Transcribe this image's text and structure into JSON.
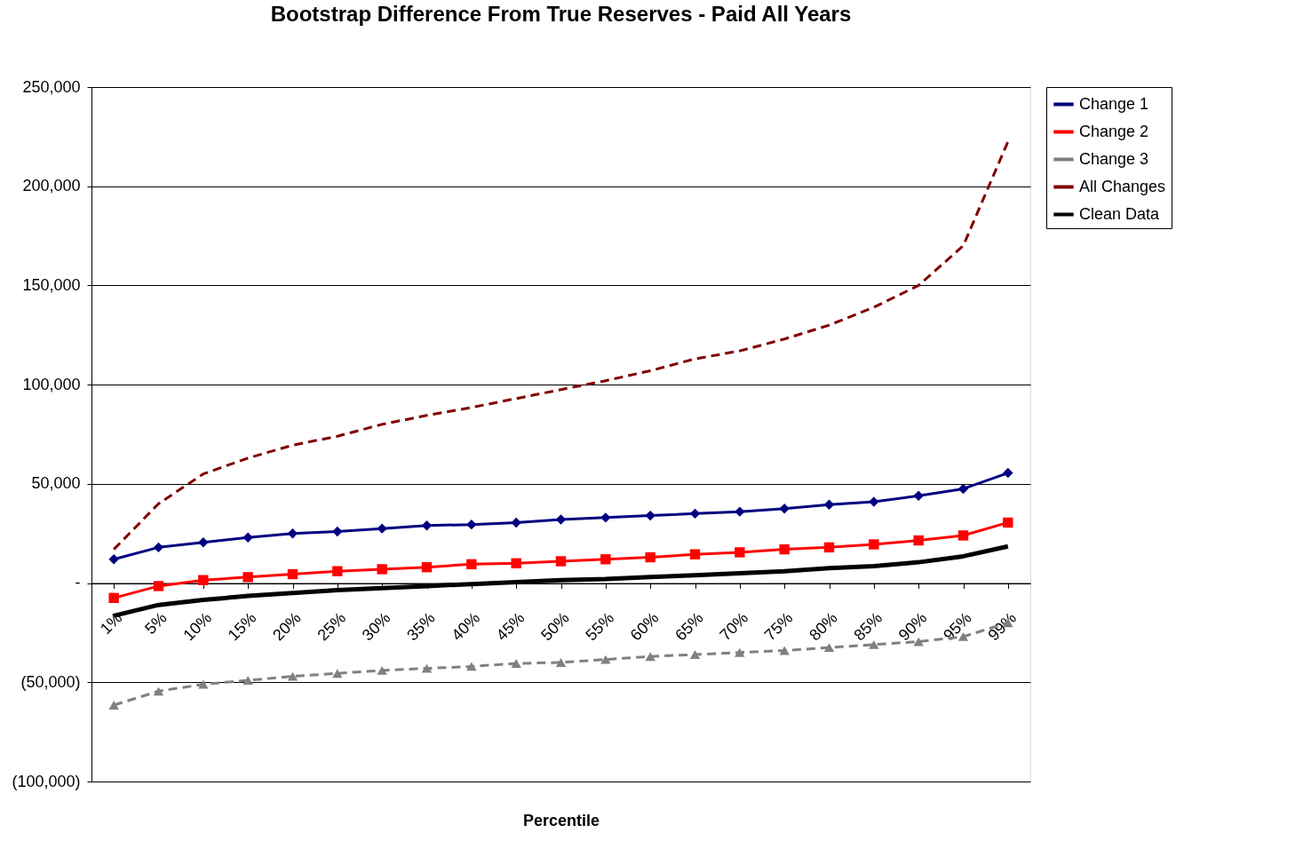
{
  "chart_data": {
    "type": "line",
    "title": "Bootstrap Difference From True Reserves - Paid All Years",
    "xlabel": "Percentile",
    "categories": [
      "1%",
      "5%",
      "10%",
      "15%",
      "20%",
      "25%",
      "30%",
      "35%",
      "40%",
      "45%",
      "50%",
      "55%",
      "60%",
      "65%",
      "70%",
      "75%",
      "80%",
      "85%",
      "90%",
      "95%",
      "99%"
    ],
    "series": [
      {
        "name": "Change 1",
        "color": "#000080",
        "marker": "diamond",
        "line_style": "solid",
        "values": [
          12000,
          18000,
          20500,
          23000,
          25000,
          26000,
          27500,
          29000,
          29500,
          30500,
          32000,
          33000,
          34000,
          35000,
          36000,
          37500,
          39500,
          41000,
          44000,
          47500,
          55500
        ]
      },
      {
        "name": "Change 2",
        "color": "#ff0000",
        "marker": "square",
        "line_style": "solid",
        "values": [
          -7500,
          -1500,
          1500,
          3000,
          4500,
          6000,
          7000,
          8000,
          9500,
          10000,
          11000,
          12000,
          13000,
          14500,
          15500,
          17000,
          18000,
          19500,
          21500,
          24000,
          30500
        ]
      },
      {
        "name": "Change 3",
        "color": "#808080",
        "marker": "triangle",
        "line_style": "dashed",
        "values": [
          -61500,
          -54500,
          -51000,
          -49000,
          -47000,
          -45500,
          -44000,
          -43000,
          -42000,
          -40500,
          -40000,
          -38500,
          -37000,
          -36000,
          -35000,
          -34000,
          -32500,
          -31000,
          -29500,
          -27000,
          -20000
        ]
      },
      {
        "name": "All Changes",
        "color": "#800000",
        "marker": "none",
        "line_style": "dashed",
        "values": [
          17000,
          40000,
          55000,
          63000,
          69500,
          74000,
          80000,
          84500,
          88500,
          93000,
          97500,
          102000,
          107000,
          113000,
          117000,
          123000,
          130000,
          139000,
          150000,
          170000,
          222500
        ]
      },
      {
        "name": "Clean Data",
        "color": "#000000",
        "marker": "none",
        "line_style": "solid",
        "values": [
          -16500,
          -11000,
          -8500,
          -6500,
          -5000,
          -3500,
          -2500,
          -1500,
          -500,
          500,
          1500,
          2000,
          3000,
          4000,
          5000,
          6000,
          7500,
          8500,
          10500,
          13500,
          18500
        ]
      }
    ],
    "ylim": [
      -100000,
      250000
    ],
    "yticks": [
      {
        "value": -100000,
        "label": "(100,000)"
      },
      {
        "value": -50000,
        "label": "(50,000)"
      },
      {
        "value": 0,
        "label": "-"
      },
      {
        "value": 50000,
        "label": "50,000"
      },
      {
        "value": 100000,
        "label": "100,000"
      },
      {
        "value": 150000,
        "label": "150,000"
      },
      {
        "value": 200000,
        "label": "200,000"
      },
      {
        "value": 250000,
        "label": "250,000"
      }
    ],
    "grid": "y",
    "legend": "right"
  }
}
